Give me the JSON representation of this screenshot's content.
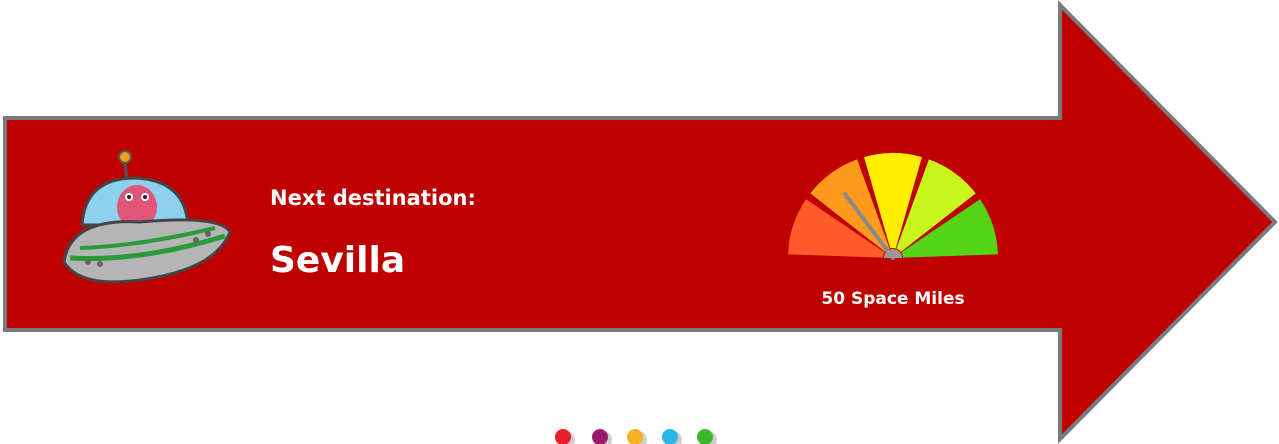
{
  "banner": {
    "label": "Next destination:",
    "destination": "Sevilla",
    "distance": "50 Space Miles"
  }
}
